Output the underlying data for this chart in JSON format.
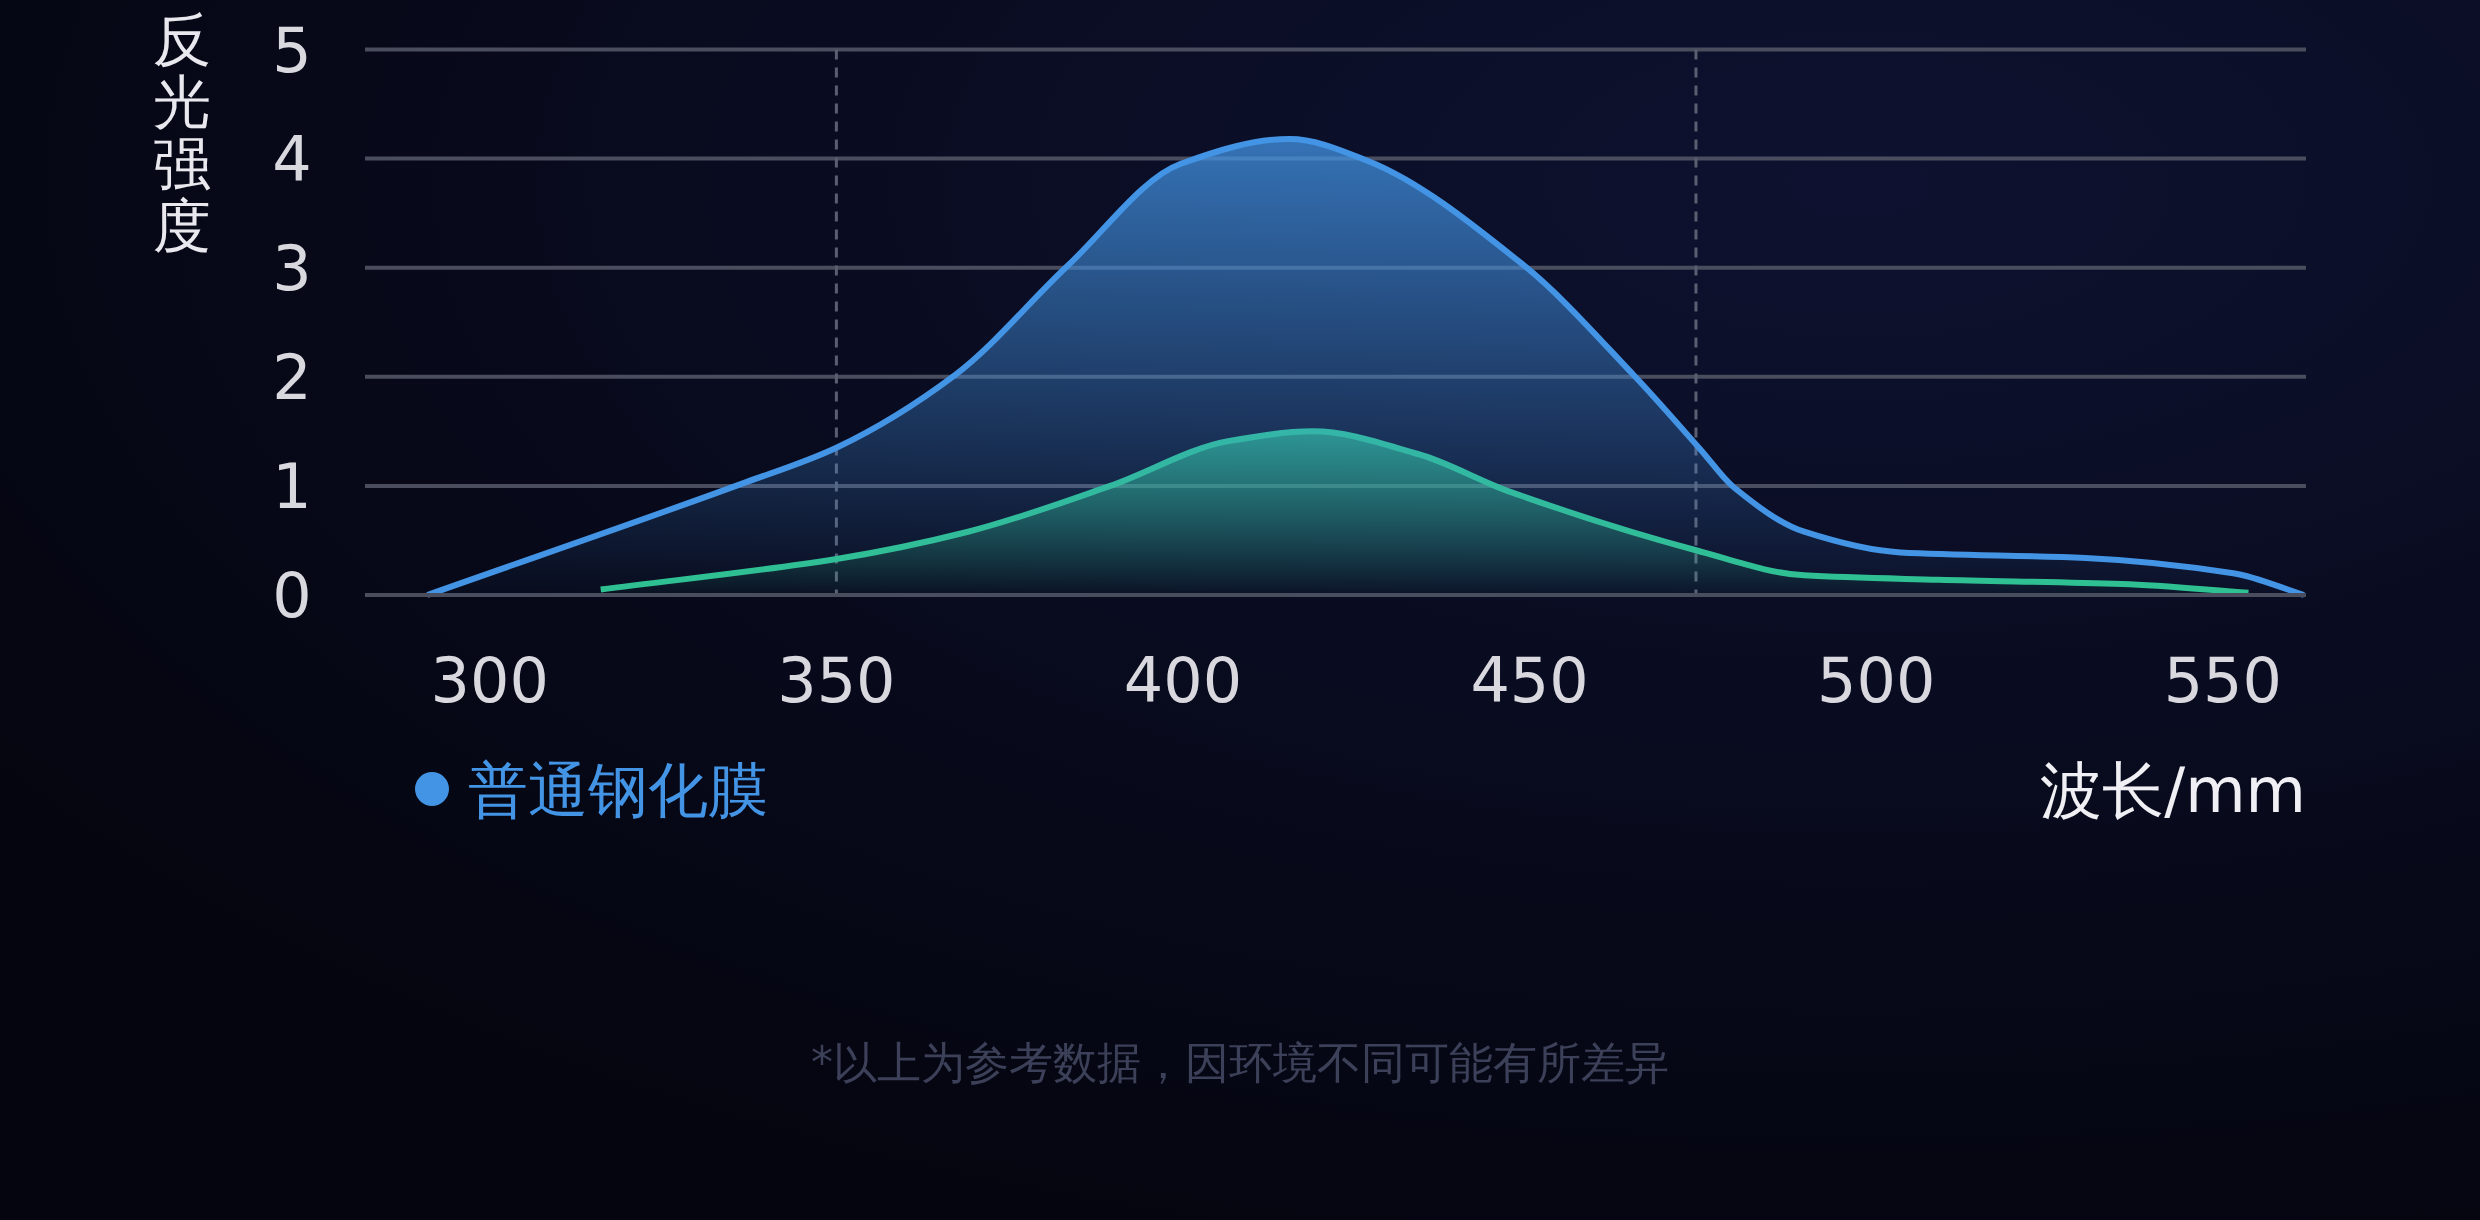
{
  "chart_data": {
    "type": "area",
    "ylabel": "反光强度",
    "xlabel": "波长/mm",
    "xlim": [
      282,
      562
    ],
    "xticks": [
      300,
      350,
      400,
      450,
      500,
      550
    ],
    "ylim": [
      0,
      5
    ],
    "yticks": [
      0,
      1,
      2,
      3,
      4,
      5
    ],
    "grid": "y",
    "legend": "bottom",
    "line_style": "solid",
    "marker": "none",
    "ref_lines": [
      {
        "axis": "x",
        "value": 350,
        "line_style": "dashed",
        "color": "#5a5e70"
      },
      {
        "axis": "x",
        "value": 474,
        "line_style": "dashed",
        "color": "#5a5e70"
      }
    ],
    "annotations": [
      "*以上为参考数据，因环境不同可能有所差异"
    ],
    "series": [
      {
        "color": "#2ec28f",
        "x": [
          316,
          350,
          369,
          389.5,
          406.5,
          418.7,
          434,
          447,
          474,
          489.6,
          509,
          535.5,
          553.7
        ],
        "values": [
          0.05,
          0.33,
          0.58,
          1.0,
          1.41,
          1.5,
          1.29,
          0.95,
          0.41,
          0.18,
          0.14,
          0.1,
          0.02
        ]
      },
      {
        "name": "普通钢化膜",
        "color": "#4394e5",
        "x": [
          291,
          336.8,
          350,
          367.2,
          383.4,
          399.6,
          415.4,
          426.6,
          449,
          465.1,
          474.7,
          479.4,
          489.6,
          503.5,
          530.2,
          551.5,
          561.7
        ],
        "values": [
          0,
          1.03,
          1.35,
          2.02,
          3.02,
          3.95,
          4.18,
          3.98,
          3.03,
          2.01,
          1.33,
          0.99,
          0.58,
          0.39,
          0.34,
          0.2,
          0
        ]
      }
    ]
  }
}
